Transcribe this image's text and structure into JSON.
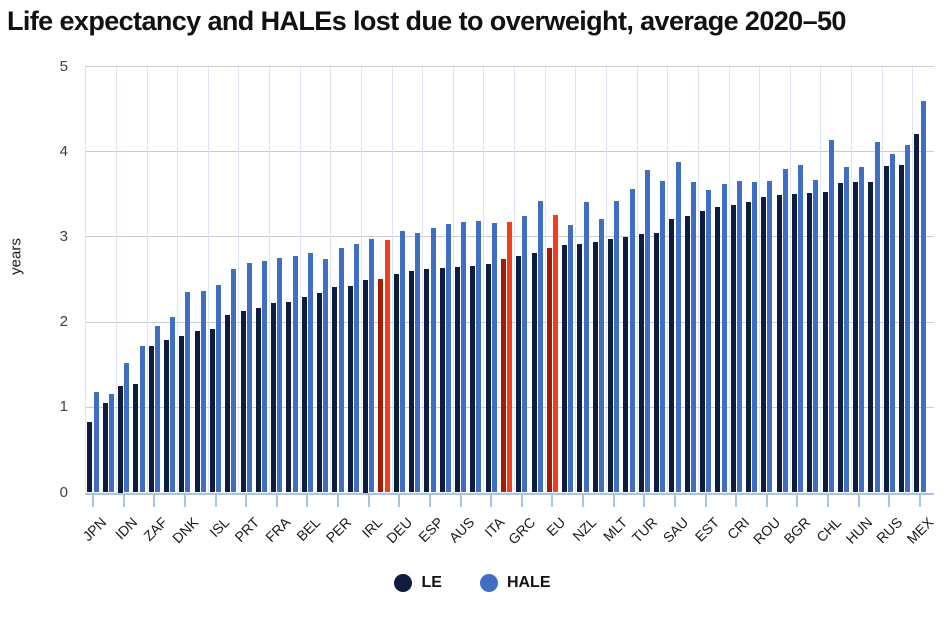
{
  "title": "Life expectancy and HALEs lost due to overweight, average 2020–50",
  "y_axis": {
    "label": "years",
    "tick_labels": [
      "0",
      "1",
      "2",
      "3",
      "4",
      "5"
    ]
  },
  "legend": {
    "items": [
      {
        "label": "LE",
        "color": "#0e1c40"
      },
      {
        "label": "HALE",
        "color": "#3f6ec2"
      }
    ]
  },
  "colors": {
    "le": "#0e1c40",
    "hale": "#3f6ec2",
    "le_highlight": "#a61c00",
    "hale_highlight": "#f03e1e",
    "grid": "#cccccc",
    "axis": "#aac4e8"
  },
  "chart_data": {
    "type": "bar",
    "title": "Life expectancy and HALEs lost due to overweight, average 2020–50",
    "xlabel": "",
    "ylabel": "years",
    "ylim": [
      0,
      5
    ],
    "grid": true,
    "legend_position": "bottom",
    "categories": [
      "JPN",
      "",
      "IDN",
      "",
      "ZAF",
      "",
      "DNK",
      "",
      "ISL",
      "",
      "PRT",
      "",
      "FRA",
      "",
      "BEL",
      "",
      "PER",
      "",
      "IRL",
      "",
      "DEU",
      "",
      "ESP",
      "",
      "AUS",
      "",
      "ITA",
      "",
      "GRC",
      "",
      "EU",
      "",
      "NZL",
      "",
      "MLT",
      "",
      "TUR",
      "",
      "SAU",
      "",
      "EST",
      "",
      "CRI",
      "",
      "ROU",
      "",
      "BGR",
      "",
      "CHL",
      "",
      "HUN",
      "",
      "RUS",
      "",
      "MEX"
    ],
    "series": [
      {
        "name": "LE",
        "values": [
          0.83,
          1.05,
          1.25,
          1.27,
          1.72,
          1.79,
          1.84,
          1.9,
          1.92,
          2.08,
          2.13,
          2.16,
          2.22,
          2.24,
          2.3,
          2.34,
          2.41,
          2.42,
          2.5,
          2.51,
          2.57,
          2.6,
          2.62,
          2.63,
          2.65,
          2.66,
          2.68,
          2.74,
          2.78,
          2.81,
          2.87,
          2.9,
          2.92,
          2.94,
          2.98,
          3.0,
          3.03,
          3.05,
          3.21,
          3.25,
          3.3,
          3.35,
          3.38,
          3.41,
          3.47,
          3.49,
          3.5,
          3.51,
          3.53,
          3.63,
          3.64,
          3.64,
          3.83,
          3.84,
          4.21
        ]
      },
      {
        "name": "HALE",
        "values": [
          1.18,
          1.16,
          1.52,
          1.72,
          1.96,
          2.06,
          2.35,
          2.36,
          2.43,
          2.62,
          2.69,
          2.72,
          2.75,
          2.77,
          2.81,
          2.74,
          2.87,
          2.92,
          2.98,
          2.96,
          3.07,
          3.05,
          3.1,
          3.15,
          3.18,
          3.19,
          3.16,
          3.17,
          3.24,
          3.42,
          3.26,
          3.14,
          3.41,
          3.21,
          3.42,
          3.56,
          3.78,
          3.66,
          3.88,
          3.64,
          3.55,
          3.62,
          3.66,
          3.64,
          3.66,
          3.8,
          3.84,
          3.67,
          4.14,
          3.82,
          3.82,
          4.11,
          3.97,
          4.08,
          4.6
        ]
      }
    ],
    "highlight_indices": [
      19,
      27,
      30
    ]
  }
}
